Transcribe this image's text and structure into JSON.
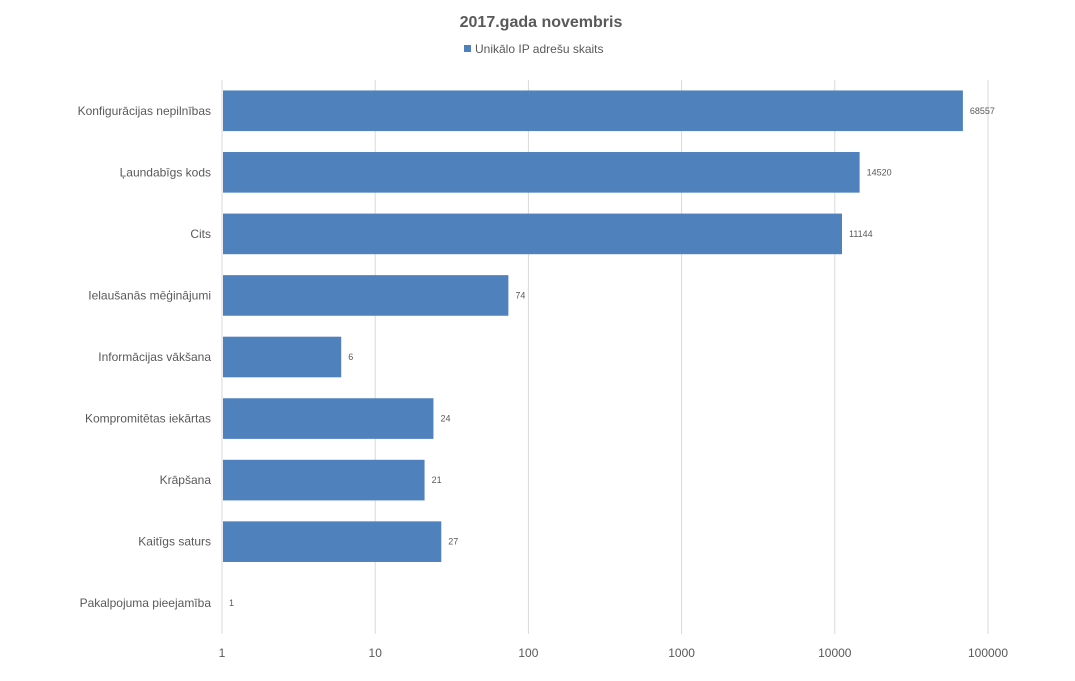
{
  "chart_data": {
    "type": "bar",
    "orientation": "horizontal",
    "title": "2017.gada novembris",
    "legend": {
      "position": "top",
      "entries": [
        "Unikālo IP adrešu skaits"
      ]
    },
    "x_scale": "log10",
    "xlim": [
      1,
      100000
    ],
    "x_ticks": [
      "1",
      "10",
      "100",
      "1000",
      "10000",
      "100000"
    ],
    "grid": true,
    "categories": [
      "Konfigurācijas nepilnības",
      "Ļaundabīgs kods",
      "Cits",
      "Ielaušanās mēģinājumi",
      "Informācijas vākšana",
      "Kompromitētas iekārtas",
      "Krāpšana",
      "Kaitīgs saturs",
      "Pakalpojuma pieejamība"
    ],
    "series": [
      {
        "name": "Unikālo IP adrešu skaits",
        "color": "#4f81bd",
        "values": [
          68557,
          14520,
          11144,
          74,
          6,
          24,
          21,
          27,
          1
        ]
      }
    ]
  }
}
